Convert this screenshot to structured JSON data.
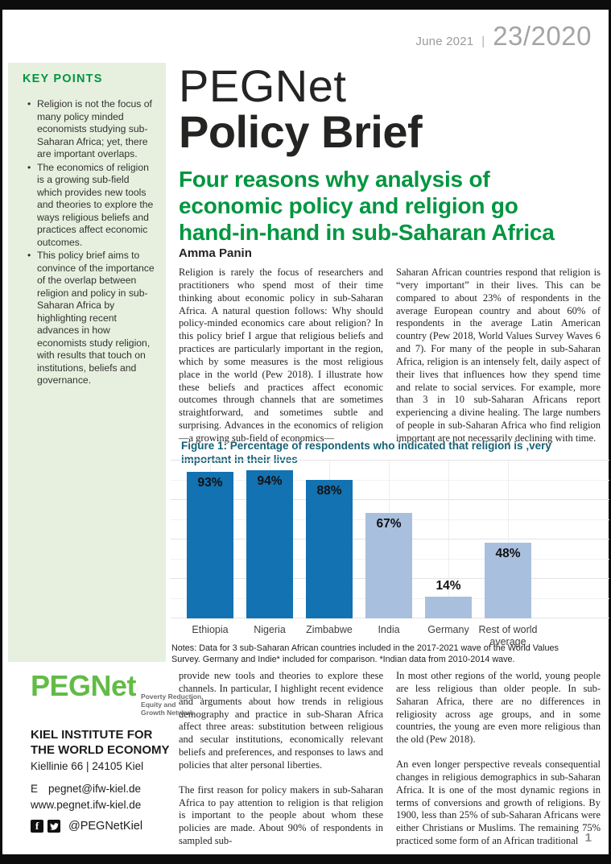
{
  "header": {
    "date": "June 2021",
    "separator": "|",
    "issue": "23/2020"
  },
  "sidebar": {
    "title": "KEY POINTS",
    "bullets": [
      "Religion is not the focus of many policy minded economists studying sub-Saharan Africa; yet, there are important overlaps.",
      "The economics of religion is a growing sub-field which provides new tools and theories to explore the ways religious beliefs and practices affect economic outcomes.",
      "This policy brief aims to convince of the importance of the overlap between religion and policy in sub-Saharan Africa by highlighting recent advances in how economists study religion, with results that touch on institutions, beliefs and governance."
    ]
  },
  "masthead": {
    "brand": "PEGNet",
    "title": "Policy Brief",
    "subtitle_lines": [
      "Four reasons why analysis of",
      "economic policy and religion go",
      "hand-in-hand in sub-Saharan Africa"
    ],
    "author": "Amma Panin"
  },
  "body": {
    "top_left": [
      "Religion is rarely the focus of researchers and practitioners who spend most of their time thinking about economic policy in sub-Saharan Africa. A natural question follows: Why should policy-minded economics care about religion? In this policy brief I argue that religious beliefs and practices are particularly important in the region, which by some measures is the most religious place in the world (Pew 2018). I illustrate how these beliefs and practices affect economic outcomes through channels that are sometimes straightforward, and sometimes subtle and surprising. Advances in the economics of religion—a growing sub-field of economics—"
    ],
    "top_right": [
      "Saharan African countries respond that religion is “very important” in their lives. This can be compared to about 23% of respondents in the average European country and about 60% of respondents in the average Latin American country (Pew 2018, World Values Survey Waves 6 and 7). For many of the people in sub-Saharan Africa, religion is an intensely felt, daily aspect of their lives that influences how they spend time and relate to social services. For example, more than 3 in 10 sub-Saharan Africans report experiencing a divine healing. The large numbers of people in sub-Saharan Africa who find religion important are not necessarily declining with time."
    ],
    "bottom_left": [
      "provide new tools and theories to explore these channels. In particular, I highlight recent evidence and arguments about how trends in religious demography and practice in sub-Sharan Africa affect three areas: substitution between religious and secular institutions, economically relevant beliefs and preferences, and responses to laws and policies that alter personal liberties.",
      "The first reason for policy makers in sub-Saharan Africa to pay attention to religion is that religion is important to the people about whom these policies are made. About 90% of respondents in sampled sub-"
    ],
    "bottom_right": [
      "In most other regions of the world, young people are less religious than older people. In sub-Saharan Africa, there are no differences in religiosity across age groups, and in some countries, the young are even more religious than the old (Pew 2018).",
      "An even longer perspective reveals consequential changes in religious demographics in sub-Saharan Africa. It is one of the most dynamic regions in terms of conversions and growth of religions. By 1900, less than 25% of sub-Saharan Africans were either Christians or Muslims. The remaining 75% practiced some form of an African traditional"
    ]
  },
  "figure": {
    "title_lines": [
      "Figure 1: Percentage of respondents who indicated that religion is ‚very",
      "important in their lives"
    ],
    "notes_lines": [
      "Notes: Data for 3 sub-Saharan African countries included in the 2017-2021 wave of the World Values",
      "Survey. Germany and Indie* included for comparison. *Indian data from 2010-2014 wave."
    ]
  },
  "chart_data": {
    "type": "bar",
    "title": "Figure 1: Percentage of respondents who indicated that religion is ‚very important in their lives",
    "categories": [
      "Ethiopia",
      "Nigeria",
      "Zimbabwe",
      "India",
      "Germany",
      "Rest of world average"
    ],
    "values": [
      93,
      94,
      88,
      67,
      14,
      48
    ],
    "value_labels": [
      "93%",
      "94%",
      "88%",
      "67%",
      "14%",
      "48%"
    ],
    "bar_colors": [
      "#1272B2",
      "#1272B2",
      "#1272B2",
      "#A9BFDE",
      "#A9BFDE",
      "#A9BFDE"
    ],
    "xlabel": "",
    "ylabel": "",
    "ylim": [
      0,
      100
    ],
    "grid": true,
    "legend": false
  },
  "footer": {
    "logo_text": "PEGNet",
    "logo_tagline_lines": [
      "Poverty Reduction,",
      "Equity and",
      "Growth Network"
    ],
    "institute_lines": [
      "KIEL INSTITUTE FOR",
      "THE WORLD ECONOMY"
    ],
    "address": "Kiellinie 66 | 24105 Kiel",
    "email_label": "E",
    "email": "pegnet@ifw-kiel.de",
    "website": "www.pegnet.ifw-kiel.de",
    "social_handle": "@PEGNetKiel"
  },
  "page_number": "1",
  "colors": {
    "accent_green": "#009640",
    "logo_green": "#62BB46",
    "figure_title_teal": "#156276",
    "bar_dark_blue": "#1272B2",
    "bar_light_blue": "#A9BFDE",
    "header_gray": "#9B9B9B",
    "sidebar_bg": "#E7F0DF"
  }
}
